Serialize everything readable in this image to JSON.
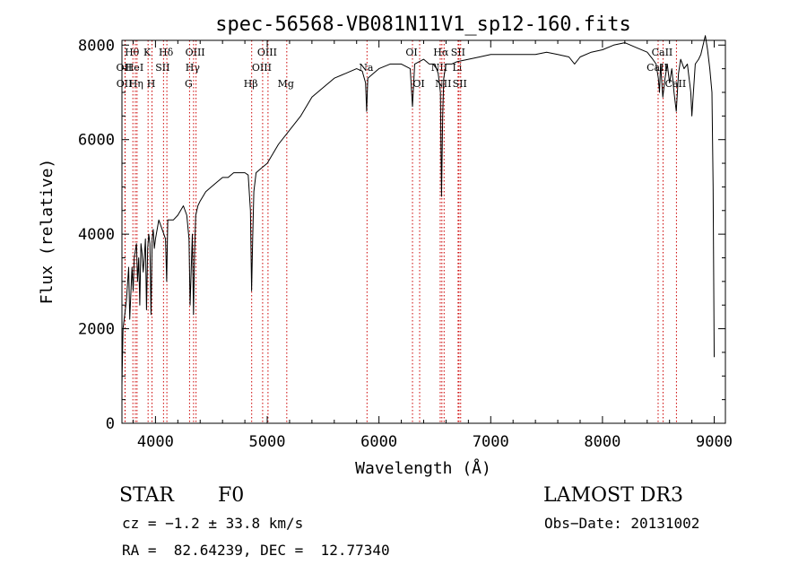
{
  "chart_data": {
    "type": "line",
    "title": "spec-56568-VB081N11V1_sp12-160.fits",
    "xlabel": "Wavelength (Å)",
    "ylabel": "Flux (relative)",
    "xlim": [
      3700,
      9100
    ],
    "ylim": [
      0,
      8100
    ],
    "xticks": [
      4000,
      5000,
      6000,
      7000,
      8000,
      9000
    ],
    "xtick_labels": [
      "4000",
      "5000",
      "6000",
      "7000",
      "8000",
      "9000"
    ],
    "yticks": [
      0,
      2000,
      4000,
      6000,
      8000
    ],
    "ytick_labels": [
      "0",
      "2000",
      "4000",
      "6000",
      "8000"
    ],
    "series": [
      {
        "name": "flux",
        "x": [
          3700,
          3710,
          3720,
          3740,
          3760,
          3770,
          3790,
          3800,
          3810,
          3830,
          3840,
          3850,
          3860,
          3870,
          3880,
          3890,
          3900,
          3910,
          3920,
          3930,
          3940,
          3950,
          3960,
          3970,
          3980,
          3990,
          4000,
          4030,
          4060,
          4090,
          4100,
          4110,
          4130,
          4160,
          4200,
          4250,
          4280,
          4300,
          4310,
          4330,
          4340,
          4350,
          4360,
          4380,
          4400,
          4450,
          4500,
          4550,
          4600,
          4650,
          4700,
          4750,
          4800,
          4830,
          4850,
          4860,
          4870,
          4880,
          4900,
          4950,
          5000,
          5100,
          5200,
          5300,
          5400,
          5500,
          5600,
          5700,
          5800,
          5850,
          5880,
          5890,
          5900,
          5950,
          6000,
          6100,
          6200,
          6280,
          6300,
          6320,
          6400,
          6450,
          6500,
          6530,
          6550,
          6560,
          6570,
          6580,
          6600,
          6650,
          6700,
          6800,
          6900,
          7000,
          7100,
          7200,
          7300,
          7400,
          7500,
          7600,
          7700,
          7750,
          7800,
          7900,
          8000,
          8100,
          8200,
          8300,
          8400,
          8450,
          8480,
          8500,
          8510,
          8520,
          8540,
          8560,
          8580,
          8600,
          8620,
          8640,
          8660,
          8680,
          8700,
          8730,
          8760,
          8790,
          8800,
          8830,
          8860,
          8880,
          8900,
          8920,
          8940,
          8960,
          8980,
          8990,
          9000
        ],
        "y": [
          800,
          2000,
          2200,
          2600,
          3300,
          2200,
          3300,
          2800,
          3500,
          3800,
          3000,
          3500,
          2500,
          3800,
          3600,
          3200,
          3500,
          3900,
          2400,
          3700,
          4000,
          3800,
          2300,
          3900,
          4100,
          3700,
          3900,
          4300,
          4100,
          3900,
          3000,
          4300,
          4300,
          4300,
          4400,
          4600,
          4400,
          3900,
          2500,
          4000,
          2300,
          3600,
          4400,
          4600,
          4700,
          4900,
          5000,
          5100,
          5200,
          5200,
          5300,
          5300,
          5300,
          5250,
          4500,
          2800,
          3900,
          4900,
          5300,
          5400,
          5500,
          5900,
          6200,
          6500,
          6900,
          7100,
          7300,
          7400,
          7500,
          7450,
          7200,
          6600,
          7300,
          7400,
          7500,
          7600,
          7600,
          7500,
          6700,
          7600,
          7700,
          7600,
          7600,
          7400,
          7000,
          4800,
          6500,
          7300,
          7600,
          7600,
          7650,
          7700,
          7750,
          7800,
          7800,
          7800,
          7800,
          7800,
          7850,
          7800,
          7750,
          7600,
          7750,
          7850,
          7900,
          8000,
          8050,
          7950,
          7850,
          7700,
          7600,
          7300,
          7000,
          7600,
          6900,
          7300,
          7600,
          7200,
          7500,
          7000,
          6600,
          7400,
          7700,
          7500,
          7600,
          7000,
          6500,
          7600,
          7700,
          7800,
          8000,
          8200,
          7900,
          7500,
          7000,
          5000,
          1400
        ]
      }
    ],
    "line_markers": [
      {
        "label": "OII",
        "wavelength": 3727,
        "row": 2
      },
      {
        "label": "OII",
        "wavelength": 3729,
        "row": 3
      },
      {
        "label": "Hθ",
        "wavelength": 3798,
        "row": 1
      },
      {
        "label": "HeI",
        "wavelength": 3820,
        "row": 2
      },
      {
        "label": "Hη",
        "wavelength": 3835,
        "row": 3
      },
      {
        "label": "K",
        "wavelength": 3934,
        "row": 1
      },
      {
        "label": "H",
        "wavelength": 3969,
        "row": 3
      },
      {
        "label": "SII",
        "wavelength": 4072,
        "row": 2
      },
      {
        "label": "Hδ",
        "wavelength": 4102,
        "row": 1
      },
      {
        "label": "G",
        "wavelength": 4305,
        "row": 3
      },
      {
        "label": "Hγ",
        "wavelength": 4341,
        "row": 2
      },
      {
        "label": "OIII",
        "wavelength": 4363,
        "row": 1
      },
      {
        "label": "Hβ",
        "wavelength": 4861,
        "row": 3
      },
      {
        "label": "OIII",
        "wavelength": 4959,
        "row": 2
      },
      {
        "label": "OIII",
        "wavelength": 5007,
        "row": 1
      },
      {
        "label": "Mg",
        "wavelength": 5175,
        "row": 3
      },
      {
        "label": "Na",
        "wavelength": 5893,
        "row": 2
      },
      {
        "label": "OI",
        "wavelength": 6300,
        "row": 1
      },
      {
        "label": "OI",
        "wavelength": 6364,
        "row": 3
      },
      {
        "label": "NII",
        "wavelength": 6548,
        "row": 2
      },
      {
        "label": "Hα",
        "wavelength": 6563,
        "row": 1
      },
      {
        "label": "NII",
        "wavelength": 6583,
        "row": 3
      },
      {
        "label": "Li",
        "wavelength": 6708,
        "row": 2
      },
      {
        "label": "SII",
        "wavelength": 6716,
        "row": 1
      },
      {
        "label": "SII",
        "wavelength": 6731,
        "row": 3
      },
      {
        "label": "CaII",
        "wavelength": 8498,
        "row": 2
      },
      {
        "label": "CaII",
        "wavelength": 8542,
        "row": 1
      },
      {
        "label": "CaII",
        "wavelength": 8662,
        "row": 3
      }
    ]
  },
  "info": {
    "class": "STAR",
    "subclass": "F0",
    "survey": "LAMOST DR3",
    "cz": "cz = −1.2 ± 33.8 km/s",
    "obs_date": "Obs−Date: 20131002",
    "coords": "RA =  82.64239, DEC =  12.77340"
  },
  "colors": {
    "line": "#000000",
    "marker": "#cc0000",
    "background": "#ffffff"
  }
}
